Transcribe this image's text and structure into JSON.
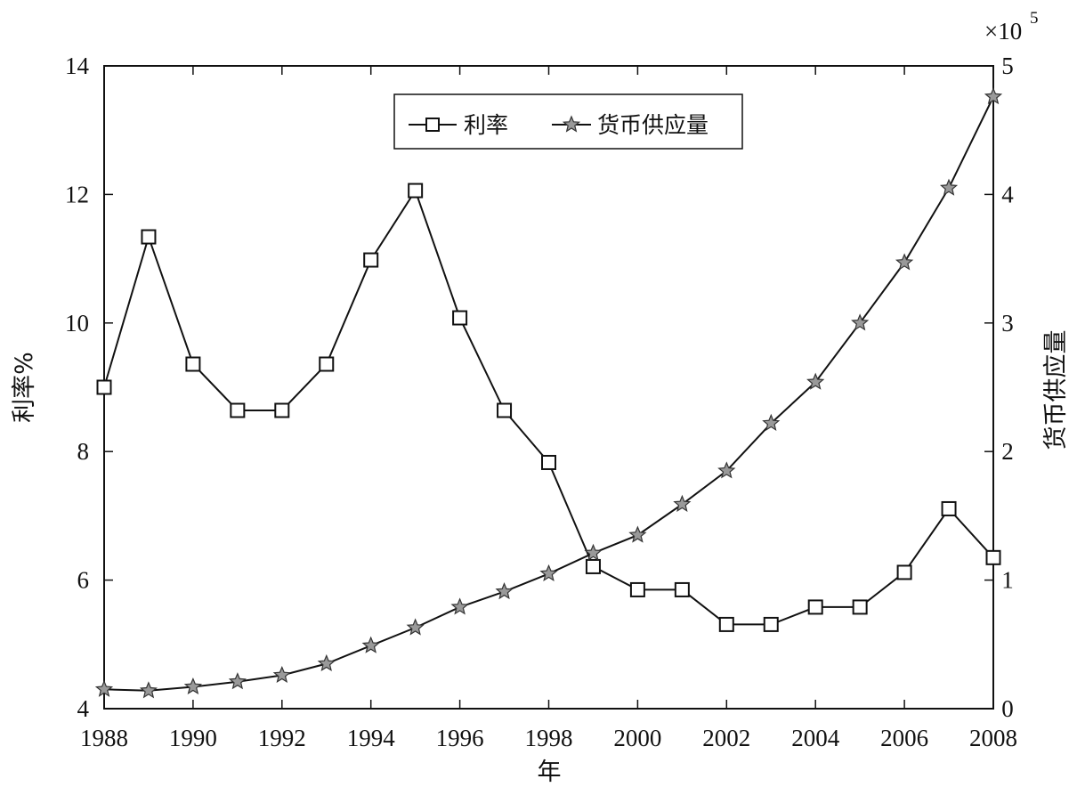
{
  "chart_data": {
    "type": "line",
    "xlabel": "年",
    "ylabel_left": "利率%",
    "ylabel_right": "货币供应量",
    "right_axis_multiplier": "×10",
    "right_axis_exponent": "5",
    "x": [
      1988,
      1989,
      1990,
      1991,
      1992,
      1993,
      1994,
      1995,
      1996,
      1997,
      1998,
      1999,
      2000,
      2001,
      2002,
      2003,
      2004,
      2005,
      2006,
      2007,
      2008
    ],
    "xlim": [
      1988,
      2008
    ],
    "x_ticks": [
      "1988",
      "1990",
      "1992",
      "1994",
      "1996",
      "1998",
      "2000",
      "2002",
      "2004",
      "2006",
      "2008"
    ],
    "ylim_left": [
      4,
      14
    ],
    "y_ticks_left": [
      "4",
      "6",
      "8",
      "10",
      "12",
      "14"
    ],
    "ylim_right": [
      0,
      5
    ],
    "y_ticks_right": [
      "0",
      "1",
      "2",
      "3",
      "4",
      "5"
    ],
    "legend_position": "top-center",
    "grid": false,
    "series": [
      {
        "name": "利率",
        "axis": "left",
        "marker": "square",
        "values": [
          9.0,
          11.34,
          9.36,
          8.64,
          8.64,
          9.36,
          10.98,
          12.06,
          10.08,
          8.64,
          7.83,
          6.21,
          5.85,
          5.85,
          5.31,
          5.31,
          5.58,
          5.58,
          6.12,
          7.11,
          6.35
        ]
      },
      {
        "name": "货币供应量",
        "axis": "right",
        "marker": "star",
        "values": [
          0.15,
          0.14,
          0.17,
          0.21,
          0.26,
          0.35,
          0.49,
          0.63,
          0.79,
          0.91,
          1.05,
          1.21,
          1.35,
          1.59,
          1.85,
          2.22,
          2.54,
          3.0,
          3.47,
          4.05,
          4.76
        ]
      }
    ]
  }
}
